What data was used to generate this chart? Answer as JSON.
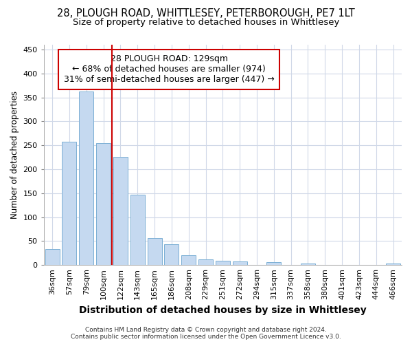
{
  "title": "28, PLOUGH ROAD, WHITTLESEY, PETERBOROUGH, PE7 1LT",
  "subtitle": "Size of property relative to detached houses in Whittlesey",
  "xlabel": "Distribution of detached houses by size in Whittlesey",
  "ylabel": "Number of detached properties",
  "categories": [
    "36sqm",
    "57sqm",
    "79sqm",
    "100sqm",
    "122sqm",
    "143sqm",
    "165sqm",
    "186sqm",
    "208sqm",
    "229sqm",
    "251sqm",
    "272sqm",
    "294sqm",
    "315sqm",
    "337sqm",
    "358sqm",
    "380sqm",
    "401sqm",
    "423sqm",
    "444sqm",
    "466sqm"
  ],
  "values": [
    33,
    258,
    362,
    255,
    226,
    147,
    57,
    44,
    20,
    12,
    9,
    7,
    0,
    6,
    0,
    3,
    0,
    0,
    0,
    0,
    3
  ],
  "bar_color": "#c5d9f0",
  "bar_edge_color": "#7bafd4",
  "vline_color": "#cc0000",
  "annotation_text": "28 PLOUGH ROAD: 129sqm\n← 68% of detached houses are smaller (974)\n31% of semi-detached houses are larger (447) →",
  "annotation_box_color": "#ffffff",
  "annotation_box_edge_color": "#cc0000",
  "ylim": [
    0,
    460
  ],
  "yticks": [
    0,
    50,
    100,
    150,
    200,
    250,
    300,
    350,
    400,
    450
  ],
  "footer": "Contains HM Land Registry data © Crown copyright and database right 2024.\nContains public sector information licensed under the Open Government Licence v3.0.",
  "bg_color": "#ffffff",
  "plot_bg_color": "#ffffff",
  "grid_color": "#d0d8e8",
  "title_fontsize": 10.5,
  "subtitle_fontsize": 9.5,
  "xlabel_fontsize": 10,
  "ylabel_fontsize": 8.5,
  "tick_fontsize": 8,
  "footer_fontsize": 6.5,
  "annotation_fontsize": 9
}
